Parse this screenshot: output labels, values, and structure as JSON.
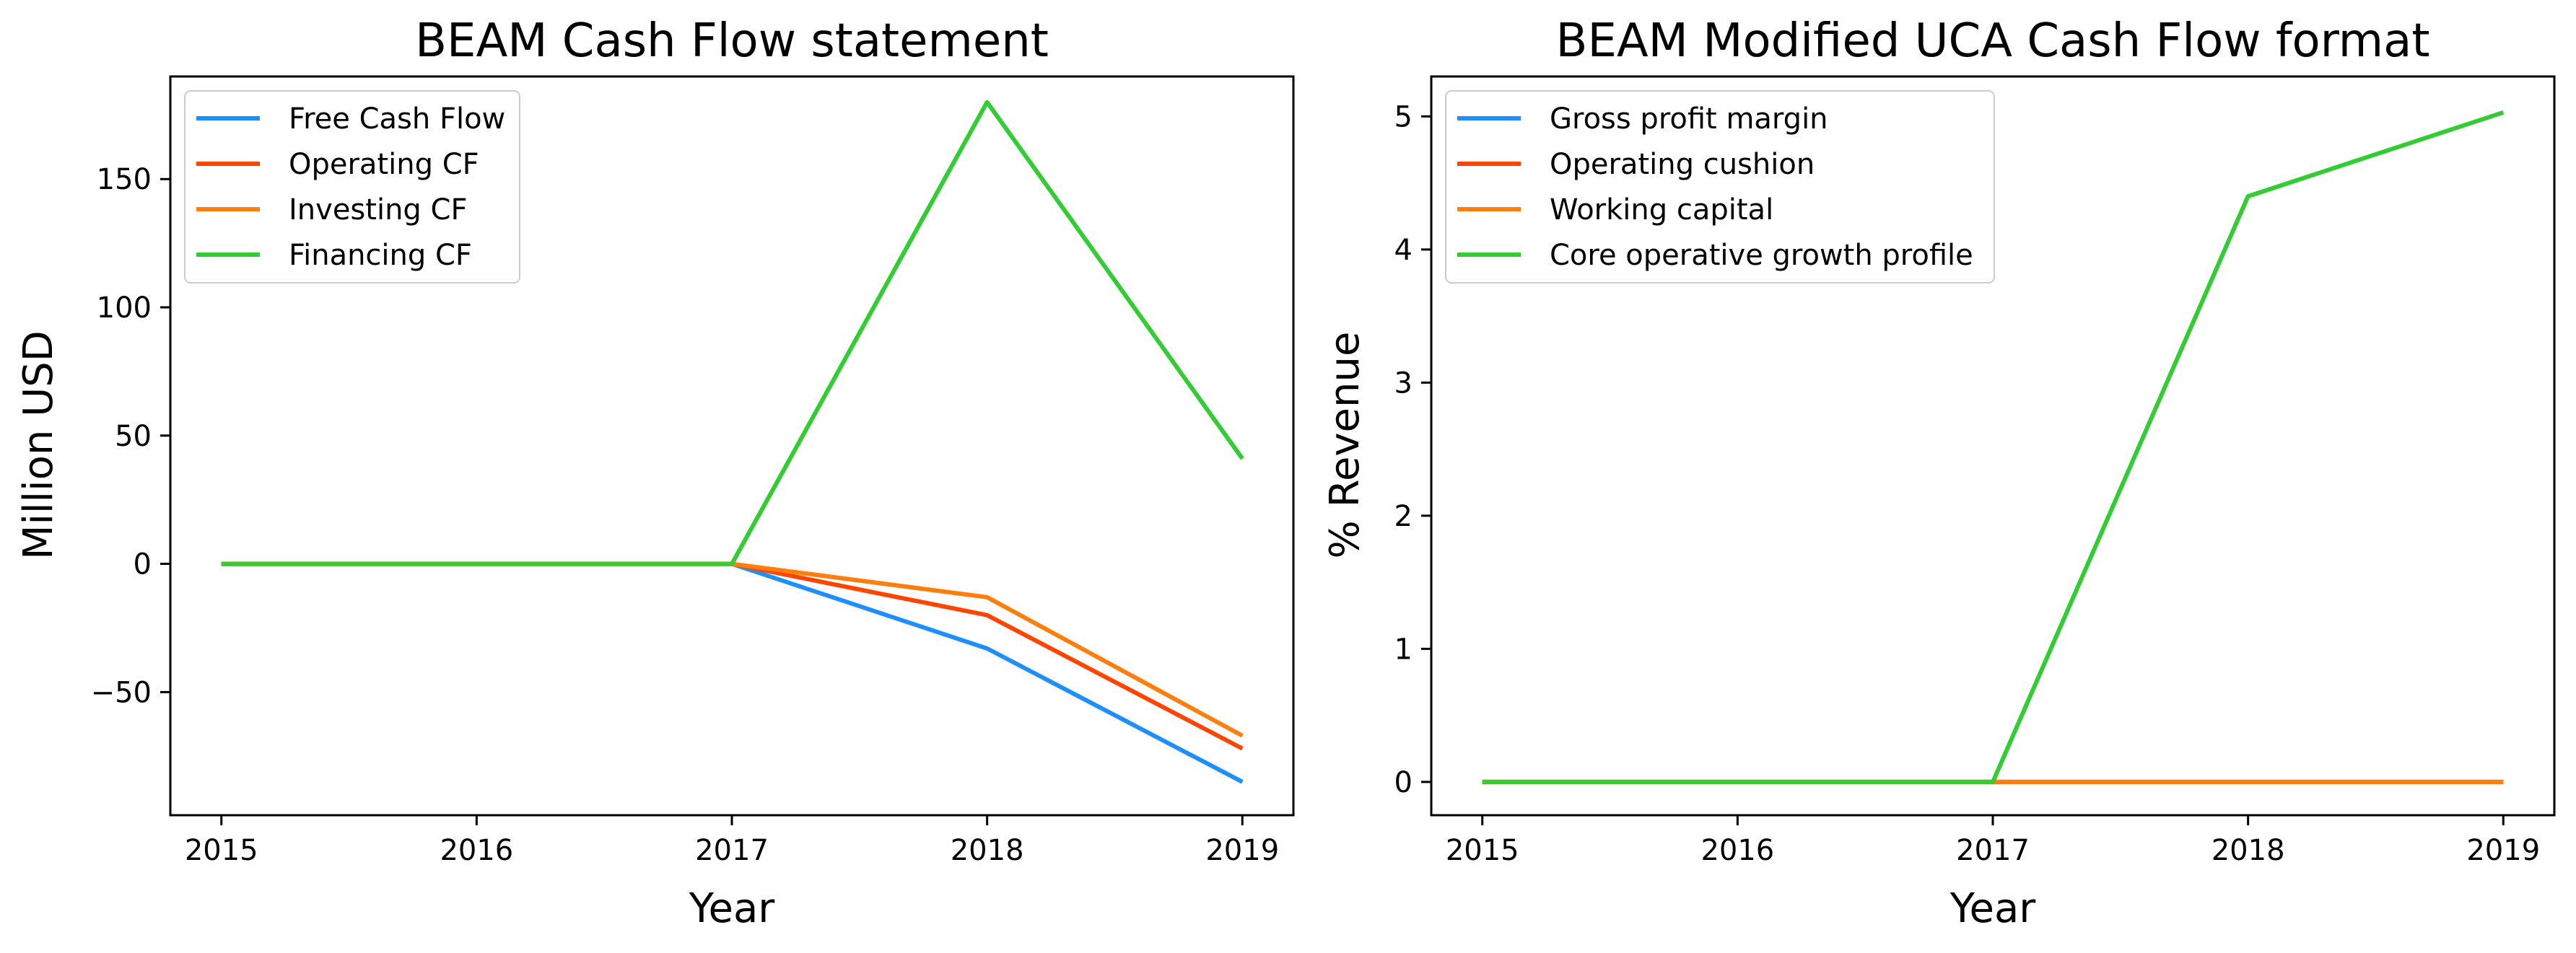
{
  "chart_data": [
    {
      "type": "line",
      "title": "BEAM Cash Flow statement",
      "xlabel": "Year",
      "ylabel": "Million USD",
      "x": [
        2015,
        2016,
        2017,
        2018,
        2019
      ],
      "xlim": [
        2014.8,
        2019.2
      ],
      "ylim": [
        -98,
        190
      ],
      "yticks": [
        -50,
        0,
        50,
        100,
        150
      ],
      "ytick_labels": [
        "−50",
        "0",
        "50",
        "100",
        "150"
      ],
      "legend": "top-left",
      "grid": false,
      "series": [
        {
          "name": "Free Cash Flow",
          "color": "#1f8fff",
          "values": [
            0,
            0,
            0,
            -33,
            -85
          ]
        },
        {
          "name": "Operating CF",
          "color": "#ff4500",
          "values": [
            0,
            0,
            0,
            -20,
            -72
          ]
        },
        {
          "name": "Investing CF",
          "color": "#ff7f0e",
          "values": [
            0,
            0,
            0,
            -13,
            -67
          ]
        },
        {
          "name": "Financing CF",
          "color": "#32cd32",
          "values": [
            0,
            0,
            0,
            180,
            41
          ]
        }
      ]
    },
    {
      "type": "line",
      "title": "BEAM Modified UCA Cash Flow format",
      "xlabel": "Year",
      "ylabel": "% Revenue",
      "x": [
        2015,
        2016,
        2017,
        2018,
        2019
      ],
      "xlim": [
        2014.8,
        2019.2
      ],
      "ylim": [
        -0.25,
        5.3
      ],
      "yticks": [
        0,
        1,
        2,
        3,
        4,
        5
      ],
      "ytick_labels": [
        "0",
        "1",
        "2",
        "3",
        "4",
        "5"
      ],
      "legend": "top-left",
      "grid": false,
      "series": [
        {
          "name": "Gross profit margin",
          "color": "#1f8fff",
          "values": [
            0,
            0,
            0,
            0,
            0
          ]
        },
        {
          "name": "Operating cushion",
          "color": "#ff4500",
          "values": [
            0,
            0,
            0,
            0,
            0
          ]
        },
        {
          "name": "Working capital",
          "color": "#ff7f0e",
          "values": [
            0,
            0,
            0,
            0,
            0
          ]
        },
        {
          "name": "Core operative growth profile",
          "color": "#32cd32",
          "values": [
            0,
            0,
            0,
            4.4,
            5.03
          ]
        }
      ]
    }
  ]
}
